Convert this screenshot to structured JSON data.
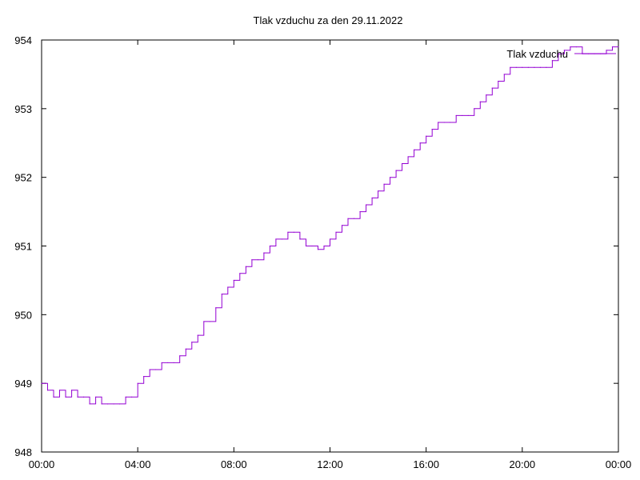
{
  "chart_data": {
    "type": "line",
    "title": "Tlak vzduchu za den 29.11.2022",
    "xlabel": "",
    "ylabel": "",
    "legend_position": "top-right",
    "grid": false,
    "x_unit": "hours",
    "xlim": [
      0,
      24
    ],
    "ylim": [
      948,
      954
    ],
    "x_ticks": [
      0,
      4,
      8,
      12,
      16,
      20,
      24
    ],
    "x_tick_labels": [
      "00:00",
      "04:00",
      "08:00",
      "12:00",
      "16:00",
      "20:00",
      "00:00"
    ],
    "y_ticks": [
      948,
      949,
      950,
      951,
      952,
      953,
      954
    ],
    "y_tick_labels": [
      "948",
      "949",
      "950",
      "951",
      "952",
      "953",
      "954"
    ],
    "series": [
      {
        "name": "Tlak vzduchu",
        "color": "#9400d3",
        "x": [
          0.0,
          0.25,
          0.5,
          0.75,
          1.0,
          1.25,
          1.5,
          1.75,
          2.0,
          2.25,
          2.5,
          2.75,
          3.0,
          3.25,
          3.5,
          3.75,
          4.0,
          4.25,
          4.5,
          4.75,
          5.0,
          5.25,
          5.5,
          5.75,
          6.0,
          6.25,
          6.5,
          6.75,
          7.0,
          7.25,
          7.5,
          7.75,
          8.0,
          8.25,
          8.5,
          8.75,
          9.0,
          9.25,
          9.5,
          9.75,
          10.0,
          10.25,
          10.5,
          10.75,
          11.0,
          11.25,
          11.5,
          11.75,
          12.0,
          12.25,
          12.5,
          12.75,
          13.0,
          13.25,
          13.5,
          13.75,
          14.0,
          14.25,
          14.5,
          14.75,
          15.0,
          15.25,
          15.5,
          15.75,
          16.0,
          16.25,
          16.5,
          16.75,
          17.0,
          17.25,
          17.5,
          17.75,
          18.0,
          18.25,
          18.5,
          18.75,
          19.0,
          19.25,
          19.5,
          19.75,
          20.0,
          20.25,
          20.5,
          20.75,
          21.0,
          21.25,
          21.5,
          21.75,
          22.0,
          22.25,
          22.5,
          22.75,
          23.0,
          23.25,
          23.5,
          23.75,
          24.0
        ],
        "y": [
          949.0,
          948.9,
          948.8,
          948.9,
          948.8,
          948.9,
          948.8,
          948.8,
          948.7,
          948.8,
          948.7,
          948.7,
          948.7,
          948.7,
          948.8,
          948.8,
          949.0,
          949.1,
          949.2,
          949.2,
          949.3,
          949.3,
          949.3,
          949.4,
          949.5,
          949.6,
          949.7,
          949.9,
          949.9,
          950.1,
          950.3,
          950.4,
          950.5,
          950.6,
          950.7,
          950.8,
          950.8,
          950.9,
          951.0,
          951.1,
          951.1,
          951.2,
          951.2,
          951.1,
          951.0,
          951.0,
          950.95,
          951.0,
          951.1,
          951.2,
          951.3,
          951.4,
          951.4,
          951.5,
          951.6,
          951.7,
          951.8,
          951.9,
          952.0,
          952.1,
          952.2,
          952.3,
          952.4,
          952.5,
          952.6,
          952.7,
          952.8,
          952.8,
          952.8,
          952.9,
          952.9,
          952.9,
          953.0,
          953.1,
          953.2,
          953.3,
          953.4,
          953.5,
          953.6,
          953.6,
          953.6,
          953.6,
          953.6,
          953.6,
          953.6,
          953.7,
          953.8,
          953.85,
          953.9,
          953.9,
          953.8,
          953.8,
          953.8,
          953.8,
          953.85,
          953.9,
          953.9
        ]
      }
    ]
  }
}
